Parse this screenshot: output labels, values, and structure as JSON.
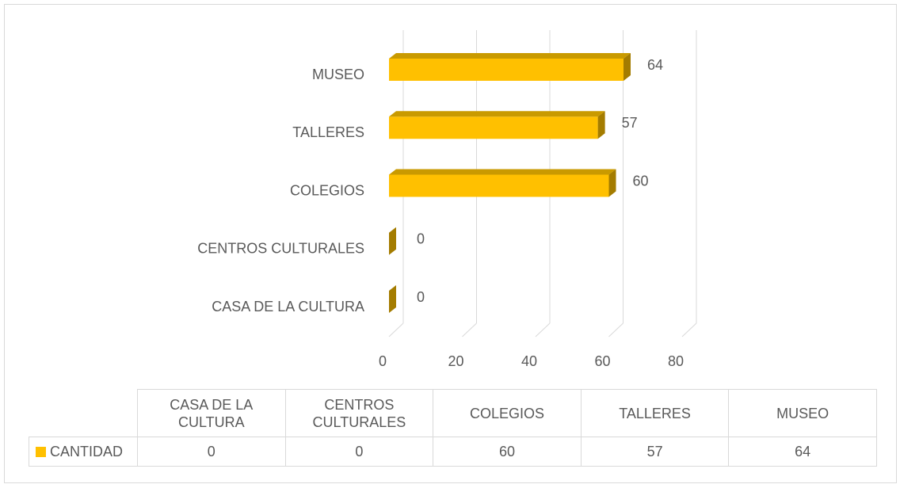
{
  "chart_data": {
    "type": "bar3d_horizontal",
    "categories": [
      "CASA DE LA CULTURA",
      "CENTROS CULTURALES",
      "COLEGIOS",
      "TALLERES",
      "MUSEO"
    ],
    "series": [
      {
        "name": "CANTIDAD",
        "color": "#ffc000",
        "values": [
          0,
          0,
          60,
          57,
          64
        ]
      }
    ],
    "xlim": [
      0,
      80
    ],
    "xticks": [
      0,
      20,
      40,
      60,
      80
    ],
    "grid": true,
    "data_table": true
  }
}
